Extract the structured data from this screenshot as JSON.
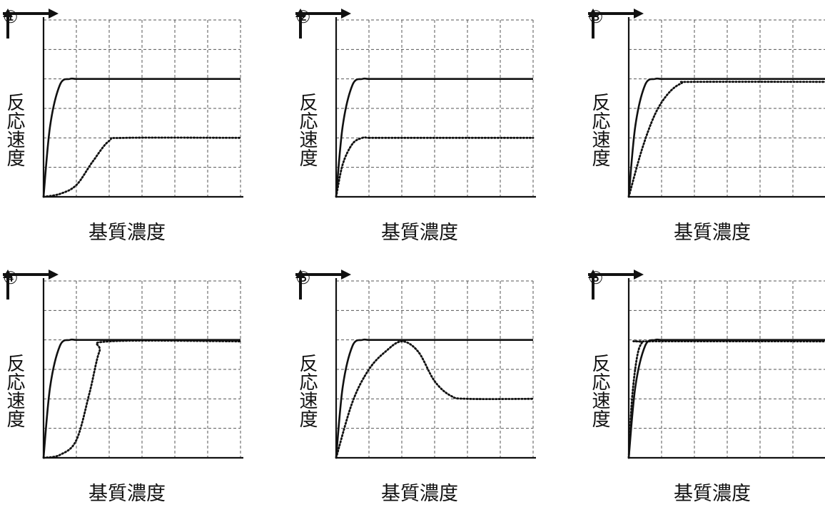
{
  "chart_data": [
    {
      "type": "line",
      "panel_label": "①",
      "ylabel": "反応速度",
      "xlabel": "基質濃度",
      "xlim": [
        0,
        6
      ],
      "ylim": [
        0,
        6
      ],
      "grid": true,
      "series": [
        {
          "style": "solid",
          "x": [
            0,
            0.2,
            0.5,
            0.8,
            1,
            1.5,
            6
          ],
          "y": [
            0,
            2.4,
            3.8,
            4.0,
            4.0,
            4.0,
            4.0
          ]
        },
        {
          "style": "dotted",
          "x": [
            0,
            0.5,
            1,
            1.5,
            2,
            2.5,
            6
          ],
          "y": [
            0,
            0.1,
            0.4,
            1.2,
            1.9,
            2.0,
            2.0
          ]
        }
      ]
    },
    {
      "type": "line",
      "panel_label": "②",
      "ylabel": "反応速度",
      "xlabel": "基質濃度",
      "xlim": [
        0,
        6
      ],
      "ylim": [
        0,
        6
      ],
      "grid": true,
      "series": [
        {
          "style": "solid",
          "x": [
            0,
            0.2,
            0.5,
            0.8,
            1,
            1.5,
            6
          ],
          "y": [
            0,
            2.4,
            3.8,
            4.0,
            4.0,
            4.0,
            4.0
          ]
        },
        {
          "style": "dotted",
          "x": [
            0,
            0.2,
            0.5,
            0.8,
            1,
            1.5,
            6
          ],
          "y": [
            0,
            1.1,
            1.8,
            2.0,
            2.0,
            2.0,
            2.0
          ]
        }
      ]
    },
    {
      "type": "line",
      "panel_label": "③",
      "ylabel": "反応速度",
      "xlabel": "基質濃度",
      "xlim": [
        0,
        6
      ],
      "ylim": [
        0,
        6
      ],
      "grid": true,
      "series": [
        {
          "style": "solid",
          "x": [
            0,
            0.2,
            0.5,
            0.8,
            1,
            1.5,
            6
          ],
          "y": [
            0,
            2.4,
            3.8,
            4.0,
            4.0,
            4.0,
            4.0
          ]
        },
        {
          "style": "dotted",
          "x": [
            0,
            0.4,
            0.8,
            1.2,
            1.6,
            2,
            6
          ],
          "y": [
            0,
            1.6,
            2.8,
            3.5,
            3.85,
            3.9,
            3.9
          ]
        }
      ]
    },
    {
      "type": "line",
      "panel_label": "④",
      "ylabel": "反応速度",
      "xlabel": "基質濃度",
      "xlim": [
        0,
        6
      ],
      "ylim": [
        0,
        6
      ],
      "grid": true,
      "series": [
        {
          "style": "solid",
          "x": [
            0,
            0.2,
            0.5,
            0.8,
            1,
            1.5,
            6
          ],
          "y": [
            0,
            2.4,
            3.8,
            4.0,
            4.0,
            4.0,
            4.0
          ]
        },
        {
          "style": "dotted",
          "x": [
            0,
            0.5,
            1,
            1.4,
            1.7,
            2,
            6
          ],
          "y": [
            0,
            0.1,
            0.6,
            2.2,
            3.6,
            3.95,
            3.95
          ]
        }
      ]
    },
    {
      "type": "line",
      "panel_label": "⑤",
      "ylabel": "反応速度",
      "xlabel": "基質濃度",
      "xlim": [
        0,
        6
      ],
      "ylim": [
        0,
        6
      ],
      "grid": true,
      "series": [
        {
          "style": "solid",
          "x": [
            0,
            0.2,
            0.5,
            0.8,
            1,
            1.5,
            6
          ],
          "y": [
            0,
            2.4,
            3.8,
            4.0,
            4.0,
            4.0,
            4.0
          ]
        },
        {
          "style": "dotted",
          "x": [
            0,
            0.5,
            1,
            1.5,
            2,
            2.5,
            3,
            3.5,
            4,
            6
          ],
          "y": [
            0,
            1.9,
            3.0,
            3.6,
            3.95,
            3.6,
            2.6,
            2.1,
            2.0,
            2.0
          ]
        }
      ]
    },
    {
      "type": "line",
      "panel_label": "⑥",
      "ylabel": "反応速度",
      "xlabel": "基質濃度",
      "xlim": [
        0,
        6
      ],
      "ylim": [
        0,
        6
      ],
      "grid": true,
      "series": [
        {
          "style": "solid",
          "x": [
            0,
            0.2,
            0.5,
            0.8,
            1,
            1.5,
            6
          ],
          "y": [
            0,
            2.4,
            3.8,
            4.0,
            4.0,
            4.0,
            4.0
          ]
        },
        {
          "style": "dotted",
          "x": [
            0,
            0.1,
            0.25,
            0.4,
            0.6,
            6
          ],
          "y": [
            0,
            2.0,
            3.4,
            3.9,
            3.95,
            3.95
          ]
        }
      ]
    }
  ]
}
